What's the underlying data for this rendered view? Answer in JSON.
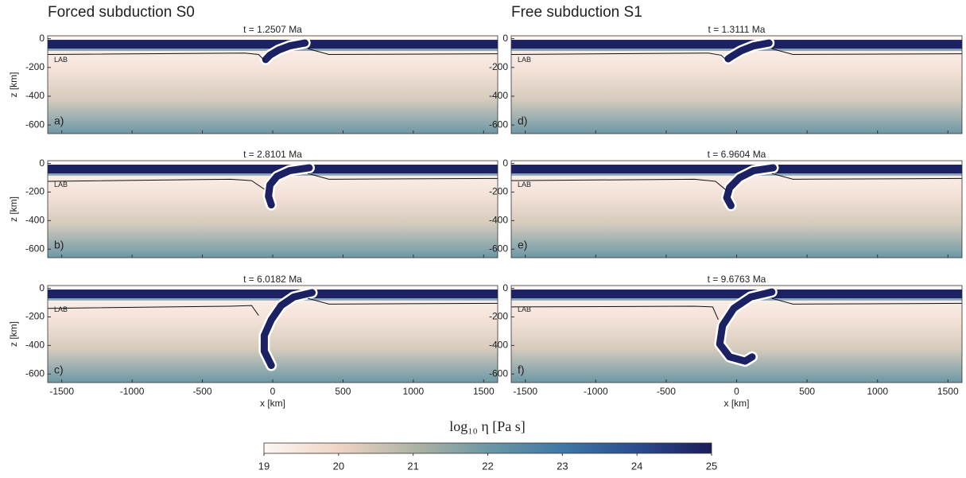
{
  "columns": [
    "Forced subduction S0",
    "Free subduction S1"
  ],
  "chart_data": [
    {
      "type": "field",
      "title": "t = 1.2507 Ma",
      "panel_label": "a)",
      "annotation": "LAB",
      "ylabel": "z [km]",
      "xlim": [
        -1600,
        1600
      ],
      "ylim": [
        -660,
        20
      ],
      "xticks": [
        -1500,
        -1000,
        -500,
        0,
        500,
        1000,
        1500
      ],
      "yticks": [
        0,
        -200,
        -400,
        -600
      ],
      "show_xticklabels": false
    },
    {
      "type": "field",
      "title": "t = 2.8101 Ma",
      "panel_label": "b)",
      "annotation": "LAB",
      "ylabel": "z [km]",
      "xlim": [
        -1600,
        1600
      ],
      "ylim": [
        -660,
        20
      ],
      "xticks": [
        -1500,
        -1000,
        -500,
        0,
        500,
        1000,
        1500
      ],
      "yticks": [
        0,
        -200,
        -400,
        -600
      ],
      "show_xticklabels": false
    },
    {
      "type": "field",
      "title": "t = 6.0182 Ma",
      "panel_label": "c)",
      "annotation": "LAB",
      "ylabel": "z [km]",
      "xlabel": "x [km]",
      "xlim": [
        -1600,
        1600
      ],
      "ylim": [
        -660,
        20
      ],
      "xticks": [
        -1500,
        -1000,
        -500,
        0,
        500,
        1000,
        1500
      ],
      "yticks": [
        0,
        -200,
        -400,
        -600
      ],
      "show_xticklabels": true
    },
    {
      "type": "field",
      "title": "t = 1.3111 Ma",
      "panel_label": "d)",
      "annotation": "LAB",
      "xlim": [
        -1600,
        1600
      ],
      "ylim": [
        -660,
        20
      ],
      "xticks": [
        -1500,
        -1000,
        -500,
        0,
        500,
        1000,
        1500
      ],
      "yticks": [
        0,
        -200,
        -400,
        -600
      ],
      "show_xticklabels": false
    },
    {
      "type": "field",
      "title": "t = 6.9604 Ma",
      "panel_label": "e)",
      "annotation": "LAB",
      "xlim": [
        -1600,
        1600
      ],
      "ylim": [
        -660,
        20
      ],
      "xticks": [
        -1500,
        -1000,
        -500,
        0,
        500,
        1000,
        1500
      ],
      "yticks": [
        0,
        -200,
        -400,
        -600
      ],
      "show_xticklabels": false
    },
    {
      "type": "field",
      "title": "t = 9.6763 Ma",
      "panel_label": "f)",
      "annotation": "LAB",
      "xlabel": "x [km]",
      "xlim": [
        -1600,
        1600
      ],
      "ylim": [
        -660,
        20
      ],
      "xticks": [
        -1500,
        -1000,
        -500,
        0,
        500,
        1000,
        1500
      ],
      "yticks": [
        0,
        -200,
        -400,
        -600
      ],
      "show_xticklabels": true
    }
  ],
  "colorbar": {
    "label": "log₁₀ η [Pa s]",
    "lim": [
      19,
      25
    ],
    "ticks": [
      19,
      20,
      21,
      22,
      23,
      24,
      25
    ]
  }
}
